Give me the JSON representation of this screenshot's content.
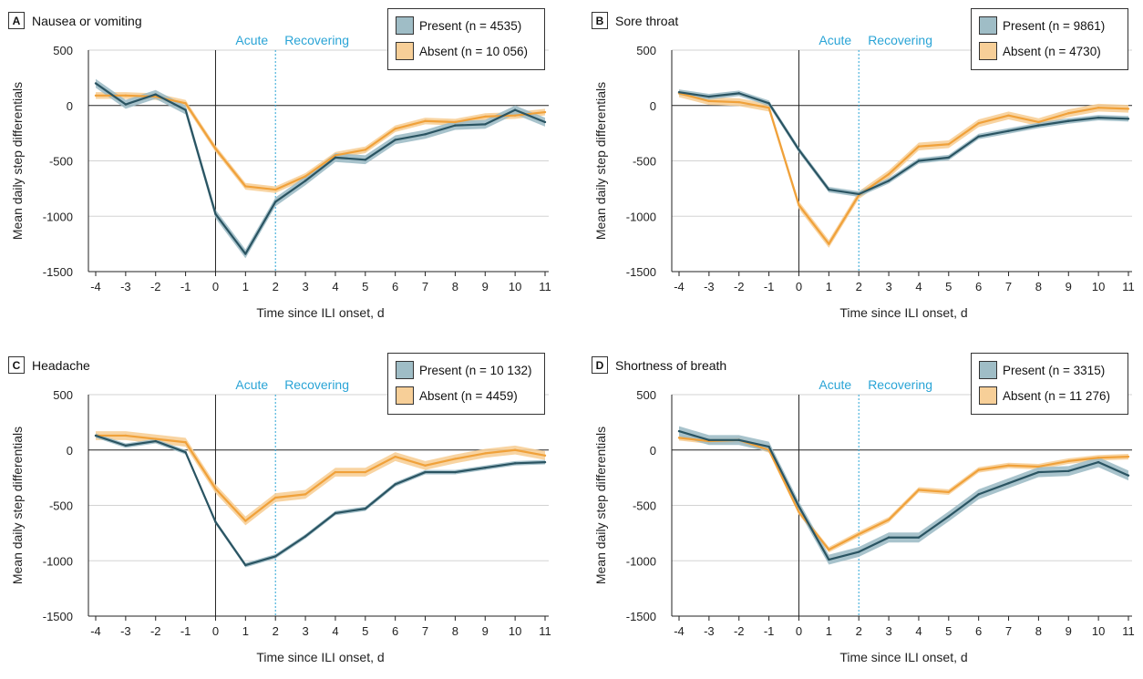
{
  "colors": {
    "present": "#2a5462",
    "present_band": "#9fbdc6",
    "absent": "#f0a13a",
    "absent_band": "#f7cf98",
    "phase_text": "#2aa4d6",
    "grid": "#d3d3d3"
  },
  "chart_data": [
    {
      "type": "line",
      "letter": "A",
      "title": "Nausea or vomiting",
      "xlabel": "Time since ILI onset, d",
      "ylabel": "Mean daily step differentials",
      "x": [
        -4,
        -3,
        -2,
        -1,
        0,
        1,
        2,
        3,
        4,
        5,
        6,
        7,
        8,
        9,
        10,
        11
      ],
      "ylim": [
        -1500,
        500
      ],
      "yticks": [
        500,
        0,
        -500,
        -1000,
        -1500
      ],
      "phase_labels": [
        "Acute",
        "Recovering"
      ],
      "grid": true,
      "legend_position": "top-right",
      "series": [
        {
          "name": "Present (n = 4535)",
          "key": "present",
          "band": 40,
          "values": [
            200,
            10,
            100,
            -40,
            -980,
            -1340,
            -870,
            -680,
            -470,
            -490,
            -310,
            -260,
            -180,
            -170,
            -40,
            -150
          ]
        },
        {
          "name": "Absent (n = 10 056)",
          "key": "absent",
          "band": 30,
          "values": [
            90,
            90,
            80,
            20,
            -390,
            -730,
            -760,
            -640,
            -450,
            -400,
            -210,
            -140,
            -150,
            -100,
            -90,
            -60
          ]
        }
      ]
    },
    {
      "type": "line",
      "letter": "B",
      "title": "Sore throat",
      "xlabel": "Time since ILI onset, d",
      "ylabel": "Mean daily step differentials",
      "x": [
        -4,
        -3,
        -2,
        -1,
        0,
        1,
        2,
        3,
        4,
        5,
        6,
        7,
        8,
        9,
        10,
        11
      ],
      "ylim": [
        -1500,
        500
      ],
      "yticks": [
        500,
        0,
        -500,
        -1000,
        -1500
      ],
      "phase_labels": [
        "Acute",
        "Recovering"
      ],
      "grid": true,
      "legend_position": "top-right",
      "series": [
        {
          "name": "Present (n = 9861)",
          "key": "present",
          "band": 25,
          "values": [
            120,
            80,
            110,
            20,
            -400,
            -760,
            -800,
            -680,
            -500,
            -470,
            -280,
            -230,
            -180,
            -140,
            -110,
            -120
          ]
        },
        {
          "name": "Absent (n = 4730)",
          "key": "absent",
          "band": 35,
          "values": [
            110,
            40,
            30,
            -20,
            -900,
            -1250,
            -810,
            -620,
            -370,
            -350,
            -160,
            -90,
            -150,
            -70,
            -20,
            -30
          ]
        }
      ]
    },
    {
      "type": "line",
      "letter": "C",
      "title": "Headache",
      "xlabel": "Time since ILI onset, d",
      "ylabel": "Mean daily step differentials",
      "x": [
        -4,
        -3,
        -2,
        -1,
        0,
        1,
        2,
        3,
        4,
        5,
        6,
        7,
        8,
        9,
        10,
        11
      ],
      "ylim": [
        -1500,
        500
      ],
      "yticks": [
        500,
        0,
        -500,
        -1000,
        -1500
      ],
      "phase_labels": [
        "Acute",
        "Recovering"
      ],
      "grid": true,
      "legend_position": "top-right",
      "series": [
        {
          "name": "Present (n = 10 132)",
          "key": "present",
          "band": 20,
          "values": [
            130,
            40,
            80,
            -20,
            -650,
            -1040,
            -960,
            -780,
            -570,
            -530,
            -310,
            -200,
            -200,
            -160,
            -120,
            -110
          ]
        },
        {
          "name": "Absent (n = 4459)",
          "key": "absent",
          "band": 40,
          "values": [
            130,
            130,
            100,
            70,
            -350,
            -640,
            -430,
            -400,
            -200,
            -200,
            -60,
            -140,
            -80,
            -30,
            0,
            -50
          ]
        }
      ]
    },
    {
      "type": "line",
      "letter": "D",
      "title": "Shortness of breath",
      "xlabel": "Time since ILI onset, d",
      "ylabel": "Mean daily step differentials",
      "x": [
        -4,
        -3,
        -2,
        -1,
        0,
        1,
        2,
        3,
        4,
        5,
        6,
        7,
        8,
        9,
        10,
        11
      ],
      "ylim": [
        -1500,
        500
      ],
      "yticks": [
        500,
        0,
        -500,
        -1000,
        -1500
      ],
      "phase_labels": [
        "Acute",
        "Recovering"
      ],
      "grid": true,
      "legend_position": "top-right",
      "series": [
        {
          "name": "Present (n = 3315)",
          "key": "present",
          "band": 45,
          "values": [
            170,
            90,
            90,
            30,
            -510,
            -990,
            -920,
            -790,
            -790,
            -600,
            -400,
            -300,
            -200,
            -190,
            -110,
            -230
          ]
        },
        {
          "name": "Absent (n = 11 276)",
          "key": "absent",
          "band": 25,
          "values": [
            110,
            80,
            90,
            0,
            -560,
            -900,
            -760,
            -630,
            -360,
            -380,
            -180,
            -140,
            -150,
            -100,
            -70,
            -60
          ]
        }
      ]
    }
  ]
}
